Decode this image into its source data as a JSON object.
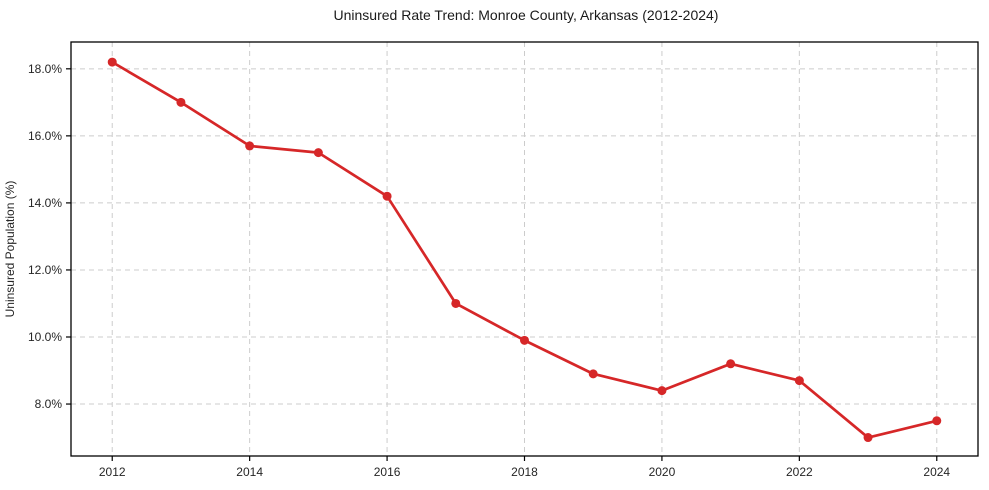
{
  "page": {
    "background_color": "#ffffff"
  },
  "chart_data": {
    "type": "line",
    "title": "Uninsured Rate Trend: Monroe County, Arkansas (2012-2024)",
    "xlabel": "",
    "ylabel": "Uninsured Population (%)",
    "x": [
      2012,
      2013,
      2014,
      2015,
      2016,
      2017,
      2018,
      2019,
      2020,
      2021,
      2022,
      2023,
      2024
    ],
    "y": [
      18.2,
      17.0,
      15.7,
      15.5,
      14.2,
      11.0,
      9.9,
      8.9,
      8.4,
      9.2,
      8.7,
      7.0,
      7.5
    ],
    "series_name": "Uninsured rate",
    "xlim": [
      2011.4,
      2024.6
    ],
    "ylim": [
      6.45,
      18.8
    ],
    "xticks": [
      2012,
      2014,
      2016,
      2018,
      2020,
      2022,
      2024
    ],
    "xtick_labels": [
      "2012",
      "2014",
      "2016",
      "2018",
      "2020",
      "2022",
      "2024"
    ],
    "yticks": [
      8,
      10,
      12,
      14,
      16,
      18
    ],
    "ytick_labels": [
      "8.0%",
      "10.0%",
      "12.0%",
      "14.0%",
      "16.0%",
      "18.0%"
    ],
    "grid": true,
    "grid_style": "dashed",
    "legend": null,
    "colors": {
      "line": "#d62728",
      "marker": "#d62728",
      "grid": "#cccccc",
      "spine": "#000000",
      "tick": "#000000",
      "text": "#262626"
    }
  }
}
